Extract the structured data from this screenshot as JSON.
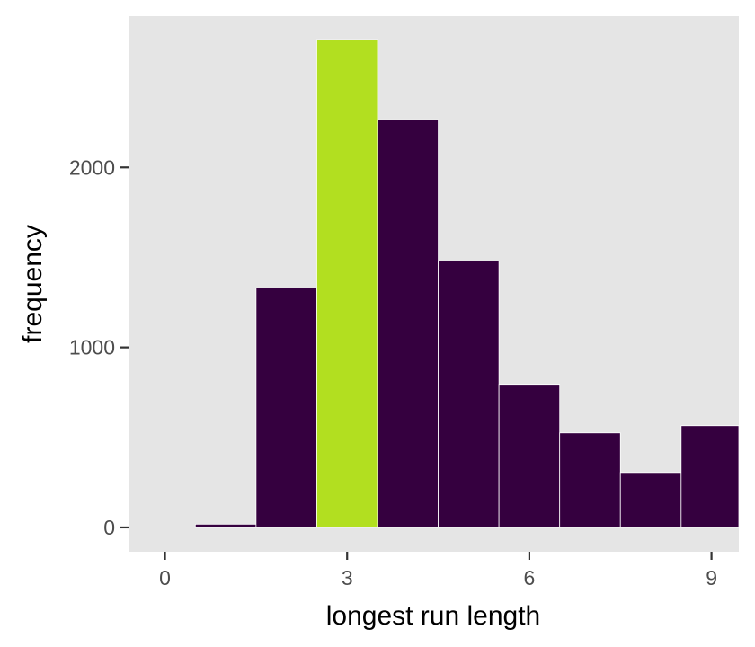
{
  "chart_data": {
    "type": "bar",
    "title": "",
    "xlabel": "longest run length",
    "ylabel": "frequency",
    "x": [
      1,
      2,
      3,
      4,
      5,
      6,
      7,
      8,
      9
    ],
    "values": [
      18,
      1330,
      2710,
      2265,
      1480,
      795,
      525,
      305,
      565
    ],
    "highlight_x": 3,
    "bin_width": 1,
    "xlim": [
      -0.6,
      9.45
    ],
    "ylim": [
      -135,
      2840
    ],
    "x_ticks": [
      0,
      3,
      6,
      9
    ],
    "x_tick_labels": [
      "0",
      "3",
      "6",
      "9"
    ],
    "y_ticks": [
      0,
      1000,
      2000
    ],
    "y_tick_labels": [
      "0",
      "1000",
      "2000"
    ],
    "grid": false,
    "legend": "none",
    "colors": {
      "bar": "#35003f",
      "highlight": "#b2df20",
      "panel": "#e5e5e5",
      "outline": "#ffffff"
    }
  }
}
